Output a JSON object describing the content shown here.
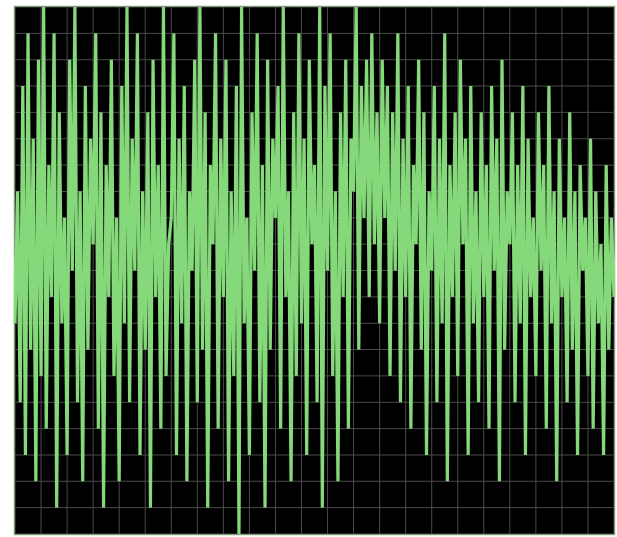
{
  "chart_data": {
    "type": "line",
    "color": "#86d97a",
    "background": "#000000",
    "grid": true,
    "grid_color": "#4a4a4a",
    "tick_labels": false,
    "xlim": [
      0,
      230
    ],
    "xticks": [
      0,
      10,
      20,
      30,
      40,
      50,
      60,
      70,
      80,
      90,
      100,
      110,
      120,
      130,
      140,
      150,
      160,
      170,
      180,
      190,
      200,
      210,
      220,
      230
    ],
    "ylim": [
      0,
      20
    ],
    "yticks": [
      0,
      1,
      2,
      3,
      4,
      5,
      6,
      7,
      8,
      9,
      10,
      11,
      12,
      13,
      14,
      15,
      16,
      17,
      18,
      19,
      20
    ],
    "values": [
      8,
      13,
      5,
      17,
      3,
      19,
      7,
      15,
      2,
      18,
      6,
      20,
      4,
      14,
      9,
      19,
      1,
      16,
      8,
      12,
      3,
      18,
      10,
      20,
      5,
      13,
      2,
      17,
      7,
      15,
      11,
      19,
      4,
      16,
      1,
      14,
      9,
      18,
      6,
      12,
      2,
      17,
      8,
      20,
      5,
      15,
      10,
      19,
      3,
      13,
      7,
      16,
      1,
      18,
      9,
      14,
      4,
      20,
      6,
      11,
      12,
      19,
      3,
      15,
      8,
      17,
      2,
      13,
      10,
      18,
      5,
      20,
      7,
      16,
      1,
      14,
      11,
      19,
      4,
      15,
      9,
      18,
      2,
      13,
      6,
      17,
      0,
      20,
      8,
      12,
      3,
      16,
      10,
      19,
      5,
      14,
      1,
      18,
      7,
      15,
      12,
      17,
      4,
      20,
      9,
      13,
      2,
      16,
      6,
      19,
      8,
      15,
      3,
      18,
      11,
      14,
      5,
      20,
      1,
      17,
      10,
      19,
      6,
      13,
      2,
      16,
      9,
      18,
      4,
      15,
      13,
      20,
      7,
      17,
      12,
      18,
      9,
      19,
      11,
      16,
      8,
      18,
      12,
      17,
      6,
      16,
      10,
      19,
      5,
      15,
      9,
      17,
      4,
      14,
      11,
      18,
      7,
      16,
      3,
      13,
      10,
      17,
      5,
      15,
      8,
      19,
      2,
      14,
      9,
      16,
      6,
      18,
      11,
      15,
      3,
      17,
      8,
      13,
      5,
      16,
      9,
      14,
      4,
      17,
      10,
      15,
      2,
      18,
      7,
      13,
      11,
      16,
      5,
      14,
      8,
      17,
      3,
      15,
      9,
      12,
      6,
      16,
      10,
      14,
      4,
      17,
      8,
      13,
      2,
      15,
      9,
      12,
      5,
      16,
      7,
      13,
      3,
      14,
      10,
      12,
      6,
      15,
      4,
      13,
      8,
      11,
      3,
      14,
      7,
      12,
      9
    ]
  }
}
